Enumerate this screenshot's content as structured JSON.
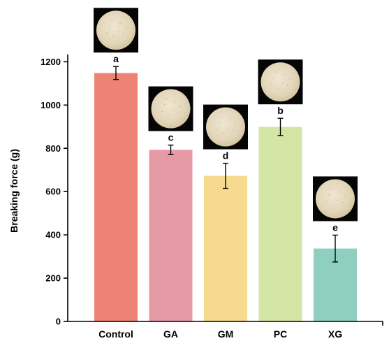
{
  "chart_data": {
    "type": "bar",
    "title": "",
    "xlabel": "",
    "ylabel": "Breaking force (g)",
    "ylim": [
      0,
      1200
    ],
    "yticks": [
      0,
      200,
      400,
      600,
      800,
      1000,
      1200
    ],
    "categories": [
      "Control",
      "GA",
      "GM",
      "PC",
      "XG"
    ],
    "values": [
      1148,
      793,
      673,
      899,
      337
    ],
    "errors": [
      30,
      22,
      58,
      40,
      62
    ],
    "significance": [
      "a",
      "c",
      "d",
      "b",
      "e"
    ],
    "colors": [
      "#EE8375",
      "#E69AA6",
      "#F7D98F",
      "#D3E6A6",
      "#8ECFC0"
    ],
    "grid": false,
    "legend": "none",
    "inset_images": "sample disc photo above each bar"
  }
}
